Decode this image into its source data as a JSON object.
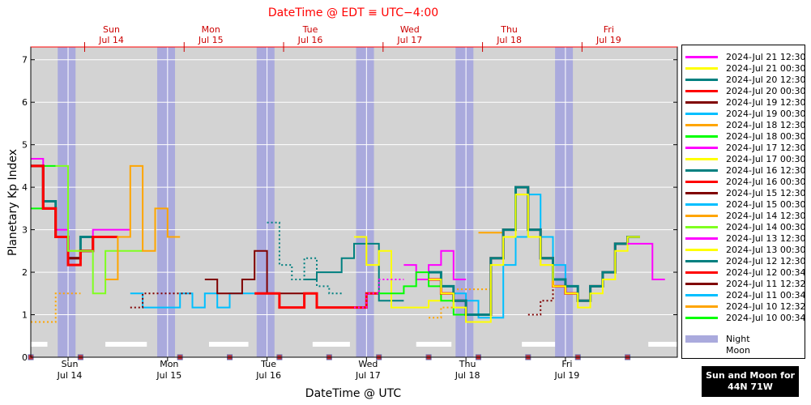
{
  "top_title": "DateTime @ EDT ≡ UTC−4:00",
  "x_axis_label": "DateTime @ UTC",
  "location_box": {
    "line1": "Sun and Moon for",
    "line2": "44N 71W"
  },
  "top_ticks": [
    {
      "day": "Sun",
      "date": "Jul 14"
    },
    {
      "day": "Mon",
      "date": "Jul 15"
    },
    {
      "day": "Tue",
      "date": "Jul 16"
    },
    {
      "day": "Wed",
      "date": "Jul 17"
    },
    {
      "day": "Thu",
      "date": "Jul 18"
    },
    {
      "day": "Fri",
      "date": "Jul 19"
    }
  ],
  "bottom_ticks": [
    {
      "day": "Sun",
      "date": "Jul 14"
    },
    {
      "day": "Mon",
      "date": "Jul 15"
    },
    {
      "day": "Tue",
      "date": "Jul 16"
    },
    {
      "day": "Wed",
      "date": "Jul 17"
    },
    {
      "day": "Thu",
      "date": "Jul 18"
    },
    {
      "day": "Fri",
      "date": "Jul 19"
    }
  ],
  "legend": [
    {
      "label": "2024-Jul 21 12:30",
      "color": "#ff00ff"
    },
    {
      "label": "2024-Jul 21 00:30",
      "color": "#ffff00"
    },
    {
      "label": "2024-Jul 20 12:30",
      "color": "#008080"
    },
    {
      "label": "2024-Jul 20 00:30",
      "color": "#ff0000"
    },
    {
      "label": "2024-Jul 19 12:30",
      "color": "#800000"
    },
    {
      "label": "2024-Jul 19 00:30",
      "color": "#00bfff"
    },
    {
      "label": "2024-Jul 18 12:30",
      "color": "#ffa500"
    },
    {
      "label": "2024-Jul 18 00:30",
      "color": "#00ff00"
    },
    {
      "label": "2024-Jul 17 12:30",
      "color": "#ff00ff"
    },
    {
      "label": "2024-Jul 17 00:30",
      "color": "#ffff00"
    },
    {
      "label": "2024-Jul 16 12:30",
      "color": "#008080"
    },
    {
      "label": "2024-Jul 16 00:30",
      "color": "#ff0000"
    },
    {
      "label": "2024-Jul 15 12:30",
      "color": "#800000"
    },
    {
      "label": "2024-Jul 15 00:30",
      "color": "#00bfff"
    },
    {
      "label": "2024-Jul 14 12:30",
      "color": "#ffa500"
    },
    {
      "label": "2024-Jul 14 00:30",
      "color": "#80ff20"
    },
    {
      "label": "2024-Jul 13 12:30",
      "color": "#ff00ff"
    },
    {
      "label": "2024-Jul 13 00:30",
      "color": "#ffff00"
    },
    {
      "label": "2024-Jul 12 12:30",
      "color": "#008080"
    },
    {
      "label": "2024-Jul 12 00:34",
      "color": "#ff0000"
    },
    {
      "label": "2024-Jul 11 12:32",
      "color": "#800000"
    },
    {
      "label": "2024-Jul 11 00:34",
      "color": "#00bfff"
    },
    {
      "label": "2024-Jul 10 12:32",
      "color": "#ffa500"
    },
    {
      "label": "2024-Jul 10 00:34",
      "color": "#00ff00"
    }
  ],
  "legend_extra": [
    {
      "label": "Night",
      "color": "#aaaadd"
    },
    {
      "label": "Moon",
      "color": "#ffffff"
    }
  ],
  "chart_data": {
    "type": "line",
    "title": "DateTime @ EDT ≡ UTC−4:00",
    "xlabel": "DateTime @ UTC",
    "ylabel": "Planetary Kp Index",
    "x_unit": "hours since 2024-07-14 00:00 UTC",
    "xlim": [
      -9,
      147
    ],
    "ylim": [
      0,
      7.3
    ],
    "yticks": [
      0,
      1,
      2,
      3,
      4,
      5,
      6,
      7
    ],
    "xticks": [
      0,
      24,
      48,
      72,
      96,
      120
    ],
    "night_intervals": [
      [
        -2.5,
        1.8
      ],
      [
        21.5,
        25.8
      ],
      [
        45.5,
        49.8
      ],
      [
        69.5,
        73.8
      ],
      [
        93.5,
        97.8
      ],
      [
        117.5,
        121.8
      ]
    ],
    "moon_intervals": [
      [
        -9,
        -5
      ],
      [
        9,
        19
      ],
      [
        34,
        43.5
      ],
      [
        59,
        68
      ],
      [
        84,
        92.5
      ],
      [
        109.5,
        117.5
      ],
      [
        140,
        147
      ]
    ],
    "marker_hours": [
      -9,
      3,
      27,
      39,
      51,
      63,
      75,
      87,
      99,
      111,
      123,
      135
    ],
    "series": [
      {
        "name": "2024-Jul 10 00:34",
        "color": "#00ff00",
        "dashed": false,
        "width": 2,
        "start": -9,
        "values": [
          3.5,
          4.5
        ]
      },
      {
        "name": "2024-Jul 10 12:32",
        "color": "#ffa500",
        "dashed": true,
        "width": 2,
        "start": -9,
        "values": [
          0.83,
          0.83,
          1.5,
          1.5
        ]
      },
      {
        "name": "2024-Jul 13 00:30",
        "color": "#ffff00",
        "dashed": false,
        "width": 2,
        "start": -9,
        "values": [
          4.5,
          3.5,
          2.83,
          2.5
        ]
      },
      {
        "name": "2024-Jul 13 12:30",
        "color": "#ff00ff",
        "dashed": false,
        "width": 2,
        "start": -9,
        "values": [
          4.67,
          3.67,
          3.0,
          2.33,
          2.83,
          3.0,
          3.0,
          3.0
        ]
      },
      {
        "name": "2024-Jul 12 12:30",
        "color": "#008080",
        "dashed": false,
        "width": 3,
        "start": -9,
        "values": [
          4.5,
          3.67,
          2.83,
          2.33,
          2.83,
          2.83,
          2.83
        ]
      },
      {
        "name": "2024-Jul 11 12:32",
        "color": "#800000",
        "dashed": false,
        "width": 3,
        "start": -9,
        "values": [
          4.5,
          3.5,
          2.83,
          2.33,
          2.5,
          2.83,
          2.83
        ]
      },
      {
        "name": "2024-Jul 12 00:34",
        "color": "#ff0000",
        "dashed": false,
        "width": 3,
        "start": -9,
        "values": [
          4.5,
          3.5,
          2.83,
          2.17,
          2.5,
          2.83,
          2.83
        ]
      },
      {
        "name": "2024-Jul 14 00:30",
        "color": "#80ff20",
        "dashed": false,
        "width": 2,
        "start": -3,
        "values": [
          4.5,
          2.5,
          2.5,
          1.5,
          2.5,
          2.5,
          2.5
        ]
      },
      {
        "name": "2024-Jul 14 12:30",
        "color": "#ffa500",
        "dashed": false,
        "width": 2,
        "start": 9,
        "values": [
          1.83,
          2.83,
          4.5,
          2.5,
          3.5,
          2.83
        ]
      },
      {
        "name": "2024-Jul 15 00:30",
        "color": "#00bfff",
        "dashed": false,
        "width": 2,
        "start": 15,
        "values": [
          1.5,
          1.17,
          1.17,
          1.17,
          1.5,
          1.17,
          1.5,
          1.17,
          1.5,
          1.5,
          1.5,
          1.5
        ]
      },
      {
        "name": "2024-Jul 15 12:30",
        "color": "#800000",
        "dashed": true,
        "width": 2,
        "start": 15,
        "values": [
          1.17,
          1.5,
          1.5,
          1.5,
          1.5
        ]
      },
      {
        "name": "2024-Jul 15 12:30",
        "color": "#800000",
        "dashed": false,
        "width": 2,
        "start": 33,
        "values": [
          1.83,
          1.5,
          1.5,
          1.83,
          2.5,
          1.5,
          1.5,
          1.5
        ]
      },
      {
        "name": "2024-Jul 16 00:30",
        "color": "#ff0000",
        "dashed": false,
        "width": 3,
        "start": 45,
        "values": [
          1.5,
          1.5,
          1.17,
          1.17,
          1.5,
          1.17,
          1.17,
          1.17,
          1.17,
          1.5
        ]
      },
      {
        "name": "2024-Jul 16 12:30",
        "color": "#008080",
        "dashed": true,
        "width": 2,
        "start": 48,
        "values": [
          3.17,
          2.17,
          1.83,
          2.33,
          1.67,
          1.5
        ]
      },
      {
        "name": "2024-Jul 16 12:30",
        "color": "#008080",
        "dashed": false,
        "width": 2,
        "start": 57,
        "values": [
          1.83,
          2.0,
          2.0,
          2.33,
          2.67,
          2.67,
          1.33,
          1.33
        ]
      },
      {
        "name": "2024-Jul 17 00:30",
        "color": "#ffff00",
        "dashed": false,
        "width": 2,
        "start": 69,
        "values": [
          2.83,
          2.17,
          2.5,
          1.17,
          1.17,
          1.17,
          1.33,
          1.5
        ]
      },
      {
        "name": "2024-Jul 17 12:30",
        "color": "#ff00ff",
        "dashed": true,
        "width": 2,
        "start": 69,
        "values": [
          1.17,
          1.5,
          1.83,
          1.83
        ]
      },
      {
        "name": "2024-Jul 17 12:30",
        "color": "#ff00ff",
        "dashed": false,
        "width": 2,
        "start": 81,
        "values": [
          2.17,
          1.83,
          2.17,
          2.5,
          1.83
        ]
      },
      {
        "name": "2024-Jul 18 00:30",
        "color": "#00ff00",
        "dashed": false,
        "width": 2,
        "start": 75,
        "values": [
          1.5,
          1.5,
          1.67,
          2.0,
          1.67,
          1.33,
          1.0,
          1.0
        ]
      },
      {
        "name": "2024-Jul 18 12:30",
        "color": "#ffa500",
        "dashed": true,
        "width": 2,
        "start": 87,
        "values": [
          0.93,
          1.17,
          1.6,
          1.6,
          1.6
        ]
      },
      {
        "name": "2024-Jul 18 12:30",
        "color": "#ffa500",
        "dashed": false,
        "width": 2,
        "start": 99,
        "values": [
          2.93,
          2.93,
          3.0,
          3.83,
          2.83,
          2.17,
          1.67
        ]
      },
      {
        "name": "2024-Jul 19 00:30",
        "color": "#00bfff",
        "dashed": false,
        "width": 2,
        "start": 93,
        "values": [
          1.5,
          1.33,
          0.93,
          0.93,
          2.17,
          2.83,
          3.83,
          2.83,
          2.17,
          1.5
        ]
      },
      {
        "name": "2024-Jul 19 12:30",
        "color": "#800000",
        "dashed": true,
        "width": 2,
        "start": 111,
        "values": [
          1.0,
          1.33,
          1.67,
          1.67
        ]
      },
      {
        "name": "2024-Jul 20 00:30",
        "color": "#ff0000",
        "dashed": false,
        "width": 3,
        "start": 87,
        "values": [
          1.83,
          1.5,
          1.33,
          1.0,
          1.0,
          2.33,
          3.0,
          4.0,
          3.0,
          2.33,
          1.67,
          1.5,
          1.33,
          1.67,
          2.0,
          2.67,
          2.83
        ]
      },
      {
        "name": "2024-Jul 20 12:30",
        "color": "#008080",
        "dashed": false,
        "width": 3,
        "start": 87,
        "values": [
          2.0,
          1.67,
          1.33,
          1.0,
          1.0,
          2.33,
          3.0,
          4.0,
          3.0,
          2.33,
          1.83,
          1.67,
          1.33,
          1.67,
          2.0,
          2.67,
          2.83
        ]
      },
      {
        "name": "2024-Jul 21 00:30",
        "color": "#ffff00",
        "dashed": false,
        "width": 2,
        "start": 87,
        "values": [
          1.83,
          1.5,
          1.17,
          0.83,
          0.83,
          2.17,
          2.83,
          3.83,
          2.83,
          2.17,
          1.67,
          1.5,
          1.17,
          1.5,
          1.83,
          2.5,
          2.83
        ]
      },
      {
        "name": "2024-Jul 21 12:30",
        "color": "#ff00ff",
        "dashed": false,
        "width": 2,
        "start": 135,
        "values": [
          2.67,
          2.67,
          1.83
        ]
      }
    ]
  }
}
